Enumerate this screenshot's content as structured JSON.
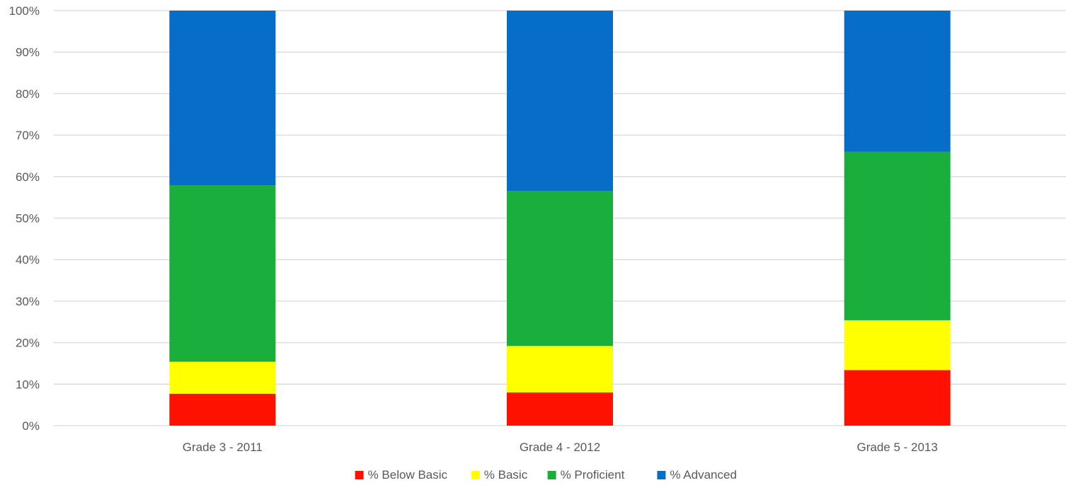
{
  "chart_data": {
    "type": "bar",
    "stacked": true,
    "normalized": true,
    "title": "",
    "xlabel": "",
    "ylabel": "",
    "ylim": [
      0,
      100
    ],
    "y_ticks": [
      "0%",
      "10%",
      "20%",
      "30%",
      "40%",
      "50%",
      "60%",
      "70%",
      "80%",
      "90%",
      "100%"
    ],
    "grid": true,
    "legend_position": "bottom",
    "categories": [
      "Grade 3 - 2011",
      "Grade 4 - 2012",
      "Grade 5 - 2013"
    ],
    "series": [
      {
        "name": "% Below Basic",
        "color": "#ff1100",
        "values": [
          7.7,
          8.0,
          13.4
        ]
      },
      {
        "name": "% Basic",
        "color": "#ffff00",
        "values": [
          7.7,
          11.2,
          12.0
        ]
      },
      {
        "name": "% Proficient",
        "color": "#1aaf3c",
        "values": [
          42.5,
          37.3,
          40.6
        ]
      },
      {
        "name": "% Advanced",
        "color": "#066ec8",
        "values": [
          42.1,
          43.5,
          34.0
        ]
      }
    ]
  }
}
